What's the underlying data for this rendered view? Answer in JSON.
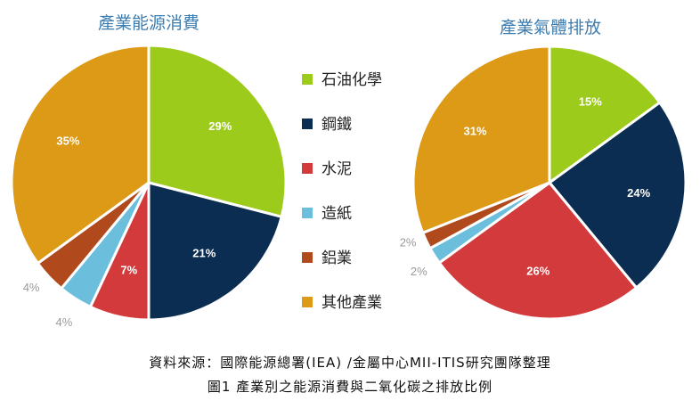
{
  "chart_data": [
    {
      "type": "pie",
      "title": "產業能源消費",
      "categories": [
        "石油化學",
        "鋼鐵",
        "水泥",
        "造紙",
        "鋁業",
        "其他產業"
      ],
      "values": [
        29,
        21,
        7,
        4,
        4,
        35
      ],
      "labels": [
        "29%",
        "21%",
        "7%",
        "4%",
        "4%",
        "35%"
      ]
    },
    {
      "type": "pie",
      "title": "產業氣體排放",
      "categories": [
        "石油化學",
        "鋼鐵",
        "水泥",
        "造紙",
        "鋁業",
        "其他產業"
      ],
      "values": [
        15,
        24,
        26,
        2,
        2,
        31
      ],
      "labels": [
        "15%",
        "24%",
        "26%",
        "2%",
        "2%",
        "31%"
      ]
    }
  ],
  "legend": [
    {
      "label": "石油化學",
      "color": "#9dcb1c"
    },
    {
      "label": "鋼鐵",
      "color": "#0b2d52"
    },
    {
      "label": "水泥",
      "color": "#d33a3c"
    },
    {
      "label": "造紙",
      "color": "#6cbfdc"
    },
    {
      "label": "鋁業",
      "color": "#b04a1d"
    },
    {
      "label": "其他產業",
      "color": "#dc9a17"
    }
  ],
  "source": "資料來源：國際能源總署(IEA) /金屬中心MII-ITIS研究團隊整理",
  "caption": "圖1 產業別之能源消費與二氧化碳之排放比例"
}
